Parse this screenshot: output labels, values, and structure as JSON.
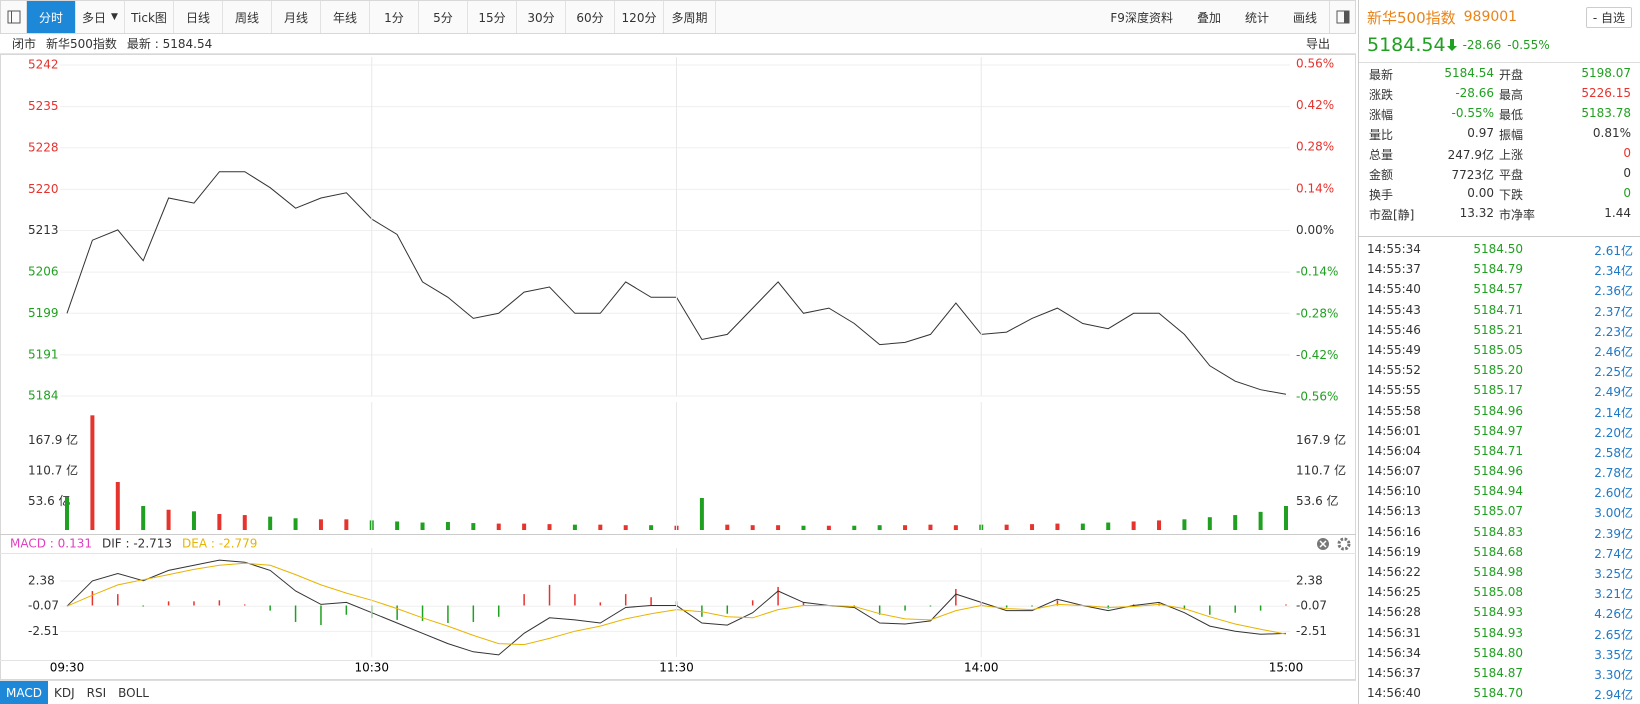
{
  "toolbar": {
    "tabs": [
      "分时",
      "多日",
      "Tick图",
      "日线",
      "周线",
      "月线",
      "年线",
      "1分",
      "5分",
      "15分",
      "30分",
      "60分",
      "120分",
      "多周期"
    ],
    "tools": [
      "F9深度资料",
      "叠加",
      "统计",
      "画线"
    ]
  },
  "info_bar": {
    "status": "闭市",
    "name": "新华500指数",
    "latest": "最新 : 5184.54",
    "export": "导出"
  },
  "chart_data": [
    {
      "type": "line",
      "color": "#333333",
      "up_color": "#e5332e",
      "down_color": "#20a020",
      "flat_color": "#333333",
      "grid": true,
      "values": [
        5198.7,
        5211.5,
        5213.3,
        5207.9,
        5218.9,
        5218.0,
        5223.5,
        5223.5,
        5220.7,
        5217.1,
        5218.9,
        5219.8,
        5215.2,
        5212.5,
        5204.2,
        5201.5,
        5197.8,
        5198.7,
        5202.4,
        5203.3,
        5198.7,
        5198.7,
        5204.2,
        5201.5,
        5201.5,
        5194.1,
        5195.0,
        5199.6,
        5204.2,
        5198.7,
        5199.6,
        5196.9,
        5193.2,
        5193.6,
        5195.0,
        5200.5,
        5195.0,
        5195.4,
        5197.8,
        5199.6,
        5196.9,
        5196.0,
        5198.7,
        5198.7,
        5195.0,
        5189.5,
        5186.8,
        5185.3,
        5184.5
      ],
      "ylim": [
        5184.2,
        5242.2
      ],
      "yticks": [
        {
          "value": 5242.2,
          "label": "5242"
        },
        {
          "value": 5234.9,
          "label": "5235"
        },
        {
          "value": 5227.7,
          "label": "5228"
        },
        {
          "value": 5220.4,
          "label": "5220"
        },
        {
          "value": 5213.2,
          "label": "5213"
        },
        {
          "value": 5205.9,
          "label": "5206"
        },
        {
          "value": 5198.7,
          "label": "5199"
        },
        {
          "value": 5191.4,
          "label": "5191"
        },
        {
          "value": 5184.2,
          "label": "5184"
        }
      ],
      "y2lim": [
        -0.556,
        0.556
      ],
      "y2ticks": [
        {
          "value": 0.56,
          "label": "0.56%"
        },
        {
          "value": 0.42,
          "label": "0.42%"
        },
        {
          "value": 0.28,
          "label": "0.28%"
        },
        {
          "value": 0.14,
          "label": "0.14%"
        },
        {
          "value": 0,
          "label": "0.00%"
        },
        {
          "value": -0.14,
          "label": "-0.14%"
        },
        {
          "value": -0.28,
          "label": "-0.28%"
        },
        {
          "value": -0.42,
          "label": "-0.42%"
        },
        {
          "value": -0.56,
          "label": "-0.56%"
        }
      ]
    },
    {
      "type": "bar",
      "up_color": "#e5332e",
      "down_color": "#20a020",
      "values": [
        62,
        215,
        90,
        45,
        38,
        35,
        30,
        28,
        25,
        22,
        20,
        20,
        18,
        16,
        14,
        15,
        13,
        12,
        12,
        11,
        10,
        10,
        9,
        9,
        8,
        60,
        10,
        9,
        9,
        8,
        8,
        8,
        9,
        9,
        10,
        9,
        10,
        10,
        11,
        12,
        12,
        14,
        16,
        18,
        20,
        24,
        28,
        34,
        45
      ],
      "ylim": [
        0,
        225
      ],
      "yticks": [
        {
          "value": 167.9,
          "label": "167.9 亿"
        },
        {
          "value": 110.7,
          "label": "110.7 亿"
        },
        {
          "value": 53.6,
          "label": "53.6 亿"
        }
      ]
    },
    {
      "type": "macd",
      "up_color": "#e5332e",
      "down_color": "#20a020",
      "grid": true,
      "categories": [
        "09:30",
        null,
        null,
        null,
        null,
        null,
        null,
        null,
        null,
        null,
        null,
        null,
        "10:30",
        null,
        null,
        null,
        null,
        null,
        null,
        null,
        null,
        null,
        null,
        null,
        "11:30",
        null,
        null,
        null,
        null,
        null,
        null,
        null,
        null,
        null,
        null,
        null,
        "14:00",
        null,
        null,
        null,
        null,
        null,
        null,
        null,
        null,
        null,
        null,
        null,
        "15:00"
      ],
      "series": [
        {
          "name": "MACD : 0.131",
          "color": "#e040c0",
          "values": [
            0,
            1.4,
            1.1,
            -0.1,
            0.4,
            0.4,
            0.5,
            0.1,
            -0.5,
            -1.6,
            -1.9,
            -0.9,
            -1.2,
            -1.4,
            -1.5,
            -1.7,
            -1.6,
            -1.1,
            1.1,
            2.0,
            1.1,
            0.3,
            1.1,
            0.8,
            0.4,
            -1.1,
            -0.8,
            0.5,
            1.8,
            0.3,
            0.0,
            -0.1,
            -0.9,
            -0.5,
            -0.1,
            1.6,
            0.3,
            -0.2,
            -0.1,
            0.5,
            0.0,
            -0.3,
            0.1,
            0.2,
            -0.4,
            -0.9,
            -0.7,
            -0.5,
            0.1
          ]
        },
        {
          "name": "DIF : -2.713",
          "color": "#333333",
          "values": [
            -0.07,
            2.38,
            3.1,
            2.4,
            3.4,
            3.9,
            4.4,
            4.2,
            3.4,
            1.4,
            0.1,
            0.3,
            -0.7,
            -1.7,
            -2.7,
            -3.7,
            -4.5,
            -4.8,
            -2.7,
            -1.2,
            -1.4,
            -1.7,
            -0.2,
            0.0,
            0.0,
            -1.7,
            -1.9,
            -0.7,
            1.4,
            0.3,
            0.0,
            -0.2,
            -1.7,
            -1.8,
            -1.5,
            1.1,
            0.3,
            -0.5,
            -0.5,
            0.6,
            0.0,
            -0.5,
            0.0,
            0.3,
            -0.7,
            -2.0,
            -2.5,
            -2.8,
            -2.71
          ]
        },
        {
          "name": "DEA : -2.779",
          "color": "#e8b400",
          "values": [
            -0.07,
            1.0,
            2.0,
            2.5,
            3.0,
            3.5,
            3.9,
            4.1,
            3.9,
            3.0,
            2.0,
            1.2,
            0.5,
            -0.3,
            -1.2,
            -2.0,
            -2.9,
            -3.7,
            -3.8,
            -3.2,
            -2.5,
            -2.0,
            -1.3,
            -0.8,
            -0.4,
            -0.6,
            -1.1,
            -1.2,
            -0.4,
            0.0,
            0.0,
            -0.1,
            -0.8,
            -1.3,
            -1.4,
            -0.5,
            0.0,
            -0.3,
            -0.4,
            0.1,
            0.0,
            -0.2,
            -0.1,
            0.1,
            -0.3,
            -1.1,
            -1.8,
            -2.3,
            -2.78
          ]
        }
      ],
      "ylim": [
        -5.0,
        4.8
      ],
      "yticks": [
        2.38,
        -0.07,
        -2.51
      ]
    }
  ],
  "indicator_tabs": [
    "MACD",
    "KDJ",
    "RSI",
    "BOLL"
  ],
  "quote_header": {
    "name": "新华500指数",
    "code": "989001",
    "watch": "- 自选",
    "price": "5184.54",
    "change": "-28.66",
    "change_pct": "-0.55%"
  },
  "quote_table": [
    [
      "最新",
      "5184.54",
      "开盘",
      "5198.07"
    ],
    [
      "涨跌",
      "-28.66",
      "最高",
      "5226.15"
    ],
    [
      "涨幅",
      "-0.55%",
      "最低",
      "5183.78"
    ],
    [
      "量比",
      "0.97",
      "振幅",
      "0.81%"
    ],
    [
      "总量",
      "247.9亿",
      "上涨",
      "0"
    ],
    [
      "金额",
      "7723亿",
      "平盘",
      "0"
    ],
    [
      "换手",
      "0.00",
      "下跌",
      "0"
    ],
    [
      "市盈[静]",
      "13.32",
      "市净率",
      "1.44"
    ]
  ],
  "trades": [
    [
      "14:55:34",
      "5184.50",
      "2.61亿"
    ],
    [
      "14:55:37",
      "5184.79",
      "2.34亿"
    ],
    [
      "14:55:40",
      "5184.57",
      "2.36亿"
    ],
    [
      "14:55:43",
      "5184.71",
      "2.37亿"
    ],
    [
      "14:55:46",
      "5185.21",
      "2.23亿"
    ],
    [
      "14:55:49",
      "5185.05",
      "2.46亿"
    ],
    [
      "14:55:52",
      "5185.20",
      "2.25亿"
    ],
    [
      "14:55:55",
      "5185.17",
      "2.49亿"
    ],
    [
      "14:55:58",
      "5184.96",
      "2.14亿"
    ],
    [
      "14:56:01",
      "5184.97",
      "2.20亿"
    ],
    [
      "14:56:04",
      "5184.71",
      "2.58亿"
    ],
    [
      "14:56:07",
      "5184.96",
      "2.78亿"
    ],
    [
      "14:56:10",
      "5184.94",
      "2.60亿"
    ],
    [
      "14:56:13",
      "5185.07",
      "3.00亿"
    ],
    [
      "14:56:16",
      "5184.83",
      "2.39亿"
    ],
    [
      "14:56:19",
      "5184.68",
      "2.74亿"
    ],
    [
      "14:56:22",
      "5184.98",
      "3.25亿"
    ],
    [
      "14:56:25",
      "5185.08",
      "3.21亿"
    ],
    [
      "14:56:28",
      "5184.93",
      "4.26亿"
    ],
    [
      "14:56:31",
      "5184.93",
      "2.65亿"
    ],
    [
      "14:56:34",
      "5184.80",
      "3.35亿"
    ],
    [
      "14:56:37",
      "5184.87",
      "3.30亿"
    ],
    [
      "14:56:40",
      "5184.70",
      "2.94亿"
    ]
  ]
}
